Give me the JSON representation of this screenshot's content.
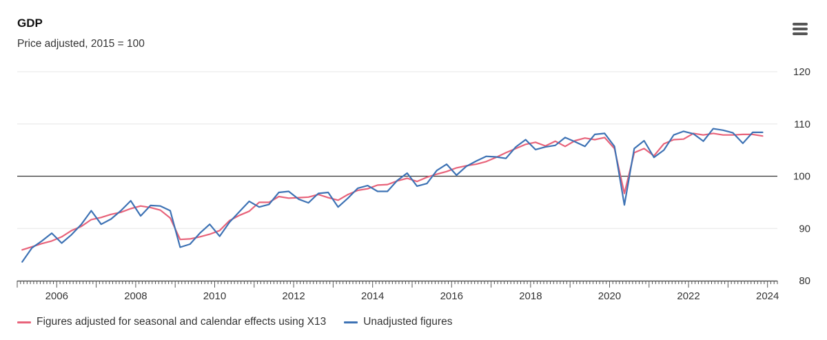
{
  "chart_data": {
    "type": "line",
    "title": "GDP",
    "subtitle": "Price adjusted, 2015 = 100",
    "xlabel": "",
    "ylabel": "",
    "x_range": [
      2005.0,
      2024.25
    ],
    "ylim": [
      80,
      120
    ],
    "y_ticks": [
      80,
      90,
      100,
      110,
      120
    ],
    "x_ticks": [
      2006,
      2008,
      2010,
      2012,
      2014,
      2016,
      2018,
      2020,
      2022,
      2024
    ],
    "reference_line": 100,
    "grid": true,
    "legend_position": "bottom",
    "x": [
      2005.125,
      2005.375,
      2005.625,
      2005.875,
      2006.125,
      2006.375,
      2006.625,
      2006.875,
      2007.125,
      2007.375,
      2007.625,
      2007.875,
      2008.125,
      2008.375,
      2008.625,
      2008.875,
      2009.125,
      2009.375,
      2009.625,
      2009.875,
      2010.125,
      2010.375,
      2010.625,
      2010.875,
      2011.125,
      2011.375,
      2011.625,
      2011.875,
      2012.125,
      2012.375,
      2012.625,
      2012.875,
      2013.125,
      2013.375,
      2013.625,
      2013.875,
      2014.125,
      2014.375,
      2014.625,
      2014.875,
      2015.125,
      2015.375,
      2015.625,
      2015.875,
      2016.125,
      2016.375,
      2016.625,
      2016.875,
      2017.125,
      2017.375,
      2017.625,
      2017.875,
      2018.125,
      2018.375,
      2018.625,
      2018.875,
      2019.125,
      2019.375,
      2019.625,
      2019.875,
      2020.125,
      2020.375,
      2020.625,
      2020.875,
      2021.125,
      2021.375,
      2021.625,
      2021.875,
      2022.125,
      2022.375,
      2022.625,
      2022.875,
      2023.125,
      2023.375,
      2023.625,
      2023.875
    ],
    "series": [
      {
        "name": "Figures adjusted for seasonal and calendar effects using X13",
        "color": "#e8637a",
        "values": [
          85.9,
          86.5,
          87.1,
          87.6,
          88.4,
          89.6,
          90.4,
          91.7,
          92.1,
          92.7,
          93.1,
          93.8,
          94.3,
          94.0,
          93.5,
          92.0,
          87.9,
          88.0,
          88.4,
          88.9,
          89.6,
          91.5,
          92.5,
          93.3,
          95.0,
          95.0,
          96.1,
          95.8,
          95.9,
          96.0,
          96.5,
          95.9,
          95.4,
          96.5,
          97.3,
          97.6,
          98.3,
          98.4,
          99.1,
          99.6,
          99.0,
          99.8,
          100.4,
          100.9,
          101.6,
          102.0,
          102.3,
          102.8,
          103.6,
          104.5,
          105.3,
          106.1,
          106.5,
          105.8,
          106.7,
          105.7,
          106.8,
          107.3,
          107.0,
          107.4,
          105.3,
          96.7,
          104.5,
          105.3,
          103.9,
          106.2,
          107.0,
          107.1,
          108.2,
          107.9,
          108.2,
          107.9,
          107.9,
          108.0,
          108.0,
          107.7
        ]
      },
      {
        "name": "Unadjusted figures",
        "color": "#3d72b4",
        "values": [
          83.6,
          86.3,
          87.6,
          89.1,
          87.2,
          88.8,
          90.8,
          93.4,
          90.8,
          91.8,
          93.4,
          95.3,
          92.4,
          94.4,
          94.3,
          93.4,
          86.4,
          87.0,
          89.1,
          90.8,
          88.5,
          91.2,
          93.2,
          95.2,
          94.1,
          94.6,
          96.9,
          97.1,
          95.6,
          94.9,
          96.7,
          96.9,
          94.1,
          95.8,
          97.7,
          98.2,
          97.1,
          97.1,
          99.2,
          100.6,
          98.1,
          98.6,
          101.1,
          102.3,
          100.2,
          101.9,
          102.9,
          103.8,
          103.7,
          103.4,
          105.6,
          107.0,
          105.1,
          105.6,
          105.9,
          107.4,
          106.6,
          105.7,
          108.0,
          108.2,
          105.7,
          94.5,
          105.3,
          106.8,
          103.6,
          105.0,
          107.9,
          108.6,
          108.1,
          106.7,
          109.1,
          108.8,
          108.3,
          106.3,
          108.4,
          108.4
        ]
      }
    ]
  }
}
